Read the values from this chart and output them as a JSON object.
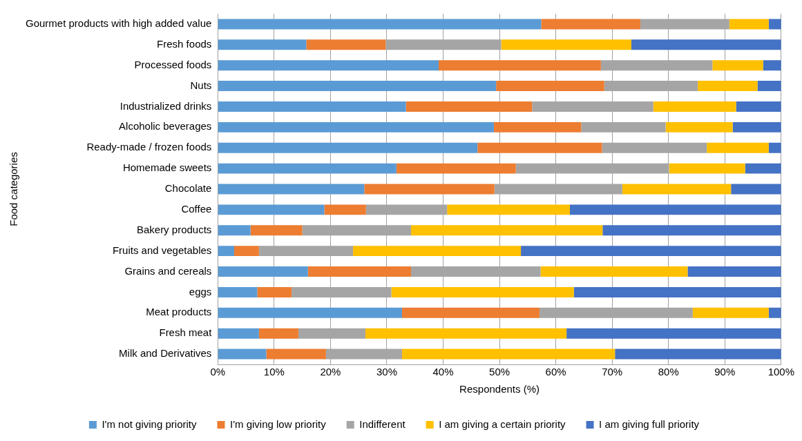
{
  "chart_data": {
    "type": "bar",
    "orientation": "horizontal",
    "stacked": true,
    "xlabel": "Respondents (%)",
    "ylabel": "Food categories",
    "categories": [
      "Gourmet products with high added value",
      "Fresh foods",
      "Processed foods",
      "Nuts",
      "Industrialized drinks",
      "Alcoholic beverages",
      "Ready-made / frozen foods",
      "Homemade sweets",
      "Chocolate",
      "Coffee",
      "Bakery products",
      "Fruits and vegetables",
      "Grains and cereals",
      "eggs",
      "Meat products",
      "Fresh meat",
      "Milk and Derivatives"
    ],
    "series": [
      {
        "name": "I'm not giving priority",
        "color": "#5b9bd5",
        "values": [
          57.4,
          15.7,
          39.2,
          49.4,
          33.4,
          49.0,
          46.1,
          31.7,
          26.0,
          18.9,
          5.8,
          2.9,
          16.0,
          7.0,
          32.7,
          7.3,
          8.6
        ]
      },
      {
        "name": "I'm giving low priority",
        "color": "#ed7d31",
        "values": [
          17.6,
          14.1,
          28.8,
          19.2,
          22.4,
          15.5,
          22.1,
          21.2,
          23.1,
          7.4,
          9.2,
          4.4,
          18.3,
          6.1,
          24.4,
          7.0,
          10.6
        ]
      },
      {
        "name": "Indifferent",
        "color": "#a5a5a5",
        "values": [
          15.8,
          20.5,
          19.8,
          16.6,
          21.5,
          15.0,
          18.6,
          27.2,
          22.7,
          14.4,
          19.3,
          16.7,
          23.0,
          17.7,
          27.2,
          11.9,
          13.5
        ]
      },
      {
        "name": "I am giving a certain priority",
        "color": "#ffc000",
        "values": [
          7.0,
          23.1,
          9.0,
          10.6,
          14.7,
          11.9,
          11.0,
          13.5,
          19.3,
          21.8,
          34.0,
          29.8,
          26.1,
          32.4,
          13.5,
          35.7,
          37.8
        ]
      },
      {
        "name": "I am giving full priority",
        "color": "#4472c4",
        "values": [
          2.2,
          26.6,
          3.2,
          4.2,
          8.0,
          8.6,
          2.2,
          6.4,
          8.9,
          37.5,
          31.7,
          46.2,
          16.6,
          36.8,
          2.2,
          38.1,
          29.5
        ]
      }
    ],
    "xlim": [
      0,
      100
    ],
    "xticks": [
      {
        "value": 0,
        "label": "0%"
      },
      {
        "value": 10,
        "label": "10%"
      },
      {
        "value": 20,
        "label": "20%"
      },
      {
        "value": 30,
        "label": "30%"
      },
      {
        "value": 40,
        "label": "40%"
      },
      {
        "value": 50,
        "label": "50%"
      },
      {
        "value": 60,
        "label": "60%"
      },
      {
        "value": 70,
        "label": "70%"
      },
      {
        "value": 80,
        "label": "80%"
      },
      {
        "value": 90,
        "label": "90%"
      },
      {
        "value": 100,
        "label": "100%"
      }
    ],
    "grid": "x",
    "legend": "bottom"
  }
}
